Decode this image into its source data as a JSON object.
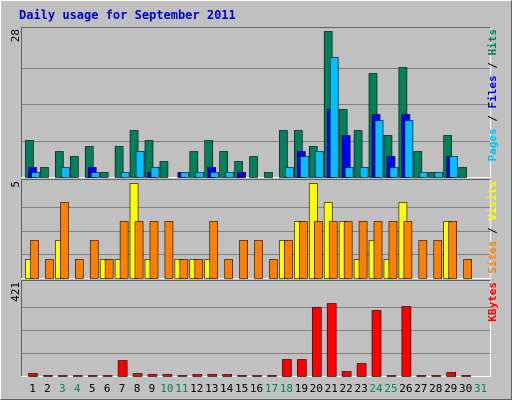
{
  "colors": {
    "frame_bg": "#c0c0c0",
    "plot_bg": "#c0c0c0",
    "grid": "#808080",
    "title": "#0000cc",
    "hits": "#00805c",
    "files": "#0000ff",
    "pages": "#00c0ff",
    "visits": "#ffff00",
    "sites": "#ff8000",
    "kbytes": "#ff0000",
    "weekday_label": "#000000",
    "weekend_label": "#00805c"
  },
  "chart_data": {
    "type": "bar",
    "title": "Daily usage for September 2011",
    "x": [
      "1",
      "2",
      "3",
      "4",
      "5",
      "6",
      "7",
      "8",
      "9",
      "10",
      "11",
      "12",
      "13",
      "14",
      "15",
      "16",
      "17",
      "18",
      "19",
      "20",
      "21",
      "22",
      "23",
      "24",
      "25",
      "26",
      "27",
      "28",
      "29",
      "30",
      "31"
    ],
    "weekend_days": [
      "3",
      "4",
      "10",
      "11",
      "17",
      "18",
      "24",
      "25",
      "31"
    ],
    "panels": [
      {
        "id": "hits_files_pages",
        "axis_label": "28",
        "ymax": 28,
        "legend": [
          {
            "text": "Pages",
            "color_key": "pages"
          },
          {
            "text": " / ",
            "color_key": "weekday_label"
          },
          {
            "text": "Files",
            "color_key": "files"
          },
          {
            "text": " / ",
            "color_key": "weekday_label"
          },
          {
            "text": "Hits",
            "color_key": "hits"
          }
        ],
        "series": [
          {
            "name": "Hits",
            "color_key": "hits",
            "values": [
              7,
              2,
              5,
              4,
              6,
              1,
              6,
              9,
              7,
              3,
              0,
              5,
              7,
              5,
              3,
              4,
              1,
              9,
              9,
              6,
              28,
              13,
              9,
              20,
              8,
              21,
              5,
              1,
              8,
              2,
              0
            ]
          },
          {
            "name": "Files",
            "color_key": "files",
            "values": [
              2,
              0,
              0,
              0,
              2,
              0,
              0,
              0,
              1,
              0,
              1,
              0,
              2,
              0,
              1,
              0,
              0,
              0,
              5,
              0,
              13,
              8,
              0,
              12,
              4,
              12,
              0,
              0,
              4,
              0,
              0
            ]
          },
          {
            "name": "Pages",
            "color_key": "pages",
            "values": [
              1,
              0,
              2,
              0,
              1,
              0,
              1,
              5,
              2,
              0,
              1,
              1,
              1,
              1,
              0,
              0,
              0,
              2,
              4,
              5,
              23,
              2,
              2,
              11,
              2,
              11,
              1,
              1,
              4,
              0,
              0
            ]
          }
        ]
      },
      {
        "id": "visits_sites",
        "axis_label": "5",
        "ymax": 5,
        "legend": [
          {
            "text": "Sites",
            "color_key": "sites"
          },
          {
            "text": " / ",
            "color_key": "weekday_label"
          },
          {
            "text": "Visits",
            "color_key": "visits"
          }
        ],
        "series": [
          {
            "name": "Visits",
            "color_key": "visits",
            "values": [
              1,
              0,
              2,
              0,
              0,
              1,
              1,
              5,
              1,
              0,
              1,
              1,
              1,
              0,
              0,
              0,
              0,
              2,
              3,
              5,
              4,
              3,
              1,
              2,
              1,
              4,
              0,
              0,
              3,
              0,
              0
            ]
          },
          {
            "name": "Sites",
            "color_key": "sites",
            "values": [
              2,
              1,
              4,
              1,
              2,
              1,
              3,
              3,
              3,
              3,
              1,
              1,
              3,
              1,
              2,
              2,
              1,
              2,
              3,
              3,
              3,
              3,
              3,
              3,
              3,
              3,
              2,
              2,
              3,
              1,
              0
            ]
          }
        ]
      },
      {
        "id": "kbytes",
        "axis_label": "421",
        "ymax": 421,
        "legend": [
          {
            "text": "KBytes",
            "color_key": "kbytes"
          }
        ],
        "series": [
          {
            "name": "KBytes",
            "color_key": "kbytes",
            "values": [
              14,
              5,
              5,
              6,
              6,
              4,
              72,
              16,
              10,
              8,
              4,
              8,
              8,
              8,
              6,
              5,
              5,
              76,
              78,
              318,
              334,
              24,
              58,
              304,
              4,
              320,
              6,
              5,
              19,
              4,
              0
            ]
          }
        ]
      }
    ]
  }
}
